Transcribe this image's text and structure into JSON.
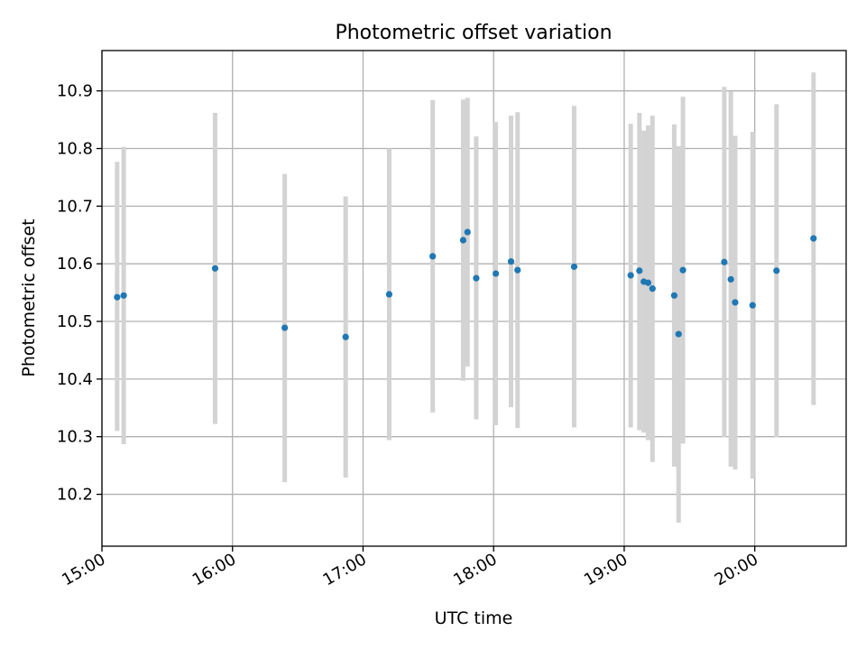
{
  "chart_data": {
    "type": "scatter",
    "title": "Photometric offset variation",
    "xlabel": "UTC time",
    "ylabel": "Photometric offset",
    "xlim": [
      "15:00",
      "20:42"
    ],
    "ylim": [
      10.11,
      10.97
    ],
    "grid": true,
    "x_ticks": [
      "15:00",
      "16:00",
      "17:00",
      "18:00",
      "19:00",
      "20:00"
    ],
    "y_ticks": [
      "10.2",
      "10.3",
      "10.4",
      "10.5",
      "10.6",
      "10.7",
      "10.8",
      "10.9"
    ],
    "colors": {
      "point": "#1f77b4",
      "errorbar": "#d3d3d3",
      "grid": "#b0b0b0"
    },
    "series": [
      {
        "points": [
          {
            "x": "15:07",
            "y": 10.542,
            "ylow": 10.31,
            "yhigh": 10.777
          },
          {
            "x": "15:10",
            "y": 10.545,
            "ylow": 10.287,
            "yhigh": 10.803
          },
          {
            "x": "15:52",
            "y": 10.592,
            "ylow": 10.322,
            "yhigh": 10.862
          },
          {
            "x": "16:24",
            "y": 10.489,
            "ylow": 10.221,
            "yhigh": 10.756
          },
          {
            "x": "16:52",
            "y": 10.473,
            "ylow": 10.229,
            "yhigh": 10.717
          },
          {
            "x": "17:12",
            "y": 10.547,
            "ylow": 10.294,
            "yhigh": 10.8
          },
          {
            "x": "17:32",
            "y": 10.613,
            "ylow": 10.342,
            "yhigh": 10.884
          },
          {
            "x": "17:46",
            "y": 10.641,
            "ylow": 10.397,
            "yhigh": 10.885
          },
          {
            "x": "17:48",
            "y": 10.655,
            "ylow": 10.422,
            "yhigh": 10.888
          },
          {
            "x": "17:52",
            "y": 10.575,
            "ylow": 10.33,
            "yhigh": 10.821
          },
          {
            "x": "18:01",
            "y": 10.583,
            "ylow": 10.32,
            "yhigh": 10.846
          },
          {
            "x": "18:08",
            "y": 10.604,
            "ylow": 10.351,
            "yhigh": 10.857
          },
          {
            "x": "18:11",
            "y": 10.589,
            "ylow": 10.315,
            "yhigh": 10.863
          },
          {
            "x": "18:37",
            "y": 10.595,
            "ylow": 10.316,
            "yhigh": 10.874
          },
          {
            "x": "19:03",
            "y": 10.58,
            "ylow": 10.316,
            "yhigh": 10.843
          },
          {
            "x": "19:07",
            "y": 10.588,
            "ylow": 10.311,
            "yhigh": 10.862
          },
          {
            "x": "19:09",
            "y": 10.569,
            "ylow": 10.307,
            "yhigh": 10.831
          },
          {
            "x": "19:11",
            "y": 10.567,
            "ylow": 10.294,
            "yhigh": 10.84
          },
          {
            "x": "19:13",
            "y": 10.557,
            "ylow": 10.256,
            "yhigh": 10.857
          },
          {
            "x": "19:23",
            "y": 10.545,
            "ylow": 10.248,
            "yhigh": 10.842
          },
          {
            "x": "19:25",
            "y": 10.478,
            "ylow": 10.151,
            "yhigh": 10.804
          },
          {
            "x": "19:27",
            "y": 10.589,
            "ylow": 10.288,
            "yhigh": 10.89
          },
          {
            "x": "19:46",
            "y": 10.603,
            "ylow": 10.299,
            "yhigh": 10.907
          },
          {
            "x": "19:49",
            "y": 10.573,
            "ylow": 10.248,
            "yhigh": 10.899
          },
          {
            "x": "19:51",
            "y": 10.533,
            "ylow": 10.243,
            "yhigh": 10.822
          },
          {
            "x": "19:59",
            "y": 10.528,
            "ylow": 10.227,
            "yhigh": 10.829
          },
          {
            "x": "20:10",
            "y": 10.588,
            "ylow": 10.299,
            "yhigh": 10.877
          },
          {
            "x": "20:27",
            "y": 10.644,
            "ylow": 10.355,
            "yhigh": 10.932
          }
        ]
      }
    ]
  }
}
